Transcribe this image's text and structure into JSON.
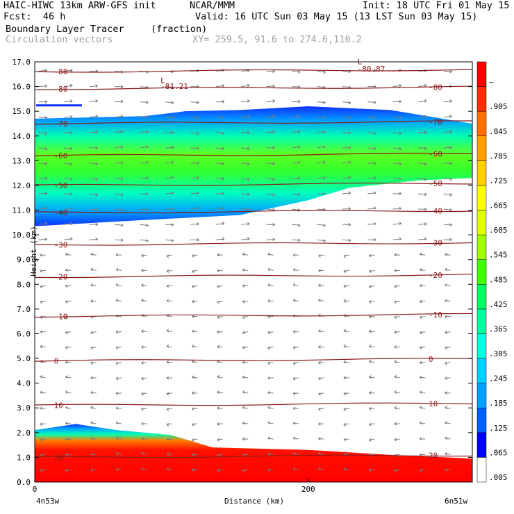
{
  "header": {
    "model": "HAIC-HIWC 13km ARW-GFS init",
    "org": "NCAR/MMM",
    "init": "Init: 18 UTC Fri 01 May 15",
    "fcst": "Fcst:  46 h",
    "valid": "Valid: 16 UTC Sun 03 May 15 (13 LST Sun 03 May 15)",
    "field": "Boundary Layer Tracer",
    "units": "(fraction)",
    "overlay": "Circulation vectors",
    "xy": "XY= 259.5, 91.6 to 274.6,110.2"
  },
  "chart_data": {
    "type": "heatmap",
    "title": "Boundary Layer Tracer",
    "xlabel": "Distance (km)",
    "ylabel": "Height (km)",
    "xlim": [
      0,
      320
    ],
    "ylim": [
      0,
      17
    ],
    "x_ticks": [
      {
        "value": 0,
        "label": "0"
      },
      {
        "value": 200,
        "label": "200"
      }
    ],
    "x_end_labels": {
      "left": "4n53w",
      "right": "6n51w"
    },
    "y_ticks": [
      "0.0",
      "1.0",
      "2.0",
      "3.0",
      "4.0",
      "5.0",
      "6.0",
      "7.0",
      "8.0",
      "9.0",
      "10.0",
      "11.0",
      "12.0",
      "13.0",
      "14.0",
      "15.0",
      "16.0",
      "17.0"
    ],
    "colorbar": {
      "labels": [
        ".005",
        ".065",
        ".125",
        ".185",
        ".245",
        ".305",
        ".365",
        ".425",
        ".485",
        ".545",
        ".605",
        ".665",
        ".725",
        ".785",
        ".845",
        ".905",
        "–"
      ],
      "colors": [
        "#ffffff",
        "#0000ff",
        "#0060ff",
        "#00a0ff",
        "#00d0ff",
        "#00ffe0",
        "#00ffa0",
        "#00ff60",
        "#40ff00",
        "#a0ff00",
        "#e0ff00",
        "#ffff00",
        "#ffd000",
        "#ffa000",
        "#ff7000",
        "#ff3000",
        "#ff0000"
      ]
    },
    "layers": [
      {
        "name": "upper plume",
        "bottom_km": [
          {
            "x": 0,
            "y": 10.35
          },
          {
            "x": 80,
            "y": 10.6
          },
          {
            "x": 150,
            "y": 10.8
          },
          {
            "x": 200,
            "y": 11.4
          },
          {
            "x": 230,
            "y": 11.9
          },
          {
            "x": 280,
            "y": 12.2
          },
          {
            "x": 320,
            "y": 12.3
          }
        ],
        "top_km": [
          {
            "x": 0,
            "y": 14.7
          },
          {
            "x": 80,
            "y": 14.8
          },
          {
            "x": 110,
            "y": 15.0
          },
          {
            "x": 150,
            "y": 15.05
          },
          {
            "x": 200,
            "y": 15.2
          },
          {
            "x": 260,
            "y": 15.05
          },
          {
            "x": 320,
            "y": 14.5
          }
        ]
      },
      {
        "name": "boundary layer",
        "top_km": [
          {
            "x": 0,
            "y": 2.1
          },
          {
            "x": 30,
            "y": 2.35
          },
          {
            "x": 60,
            "y": 2.1
          },
          {
            "x": 100,
            "y": 1.9
          },
          {
            "x": 130,
            "y": 1.4
          },
          {
            "x": 200,
            "y": 1.3
          },
          {
            "x": 260,
            "y": 1.1
          },
          {
            "x": 320,
            "y": 0.95
          }
        ]
      }
    ],
    "temperature_contours": [
      {
        "value": "-80",
        "y_km": 16.6
      },
      {
        "value": "-80",
        "y_km": 15.9
      },
      {
        "value": "-70",
        "y_km": 14.5
      },
      {
        "value": "-60",
        "y_km": 13.2
      },
      {
        "value": "-50",
        "y_km": 12.0
      },
      {
        "value": "-40",
        "y_km": 10.9
      },
      {
        "value": "-30",
        "y_km": 9.6
      },
      {
        "value": "-20",
        "y_km": 8.3
      },
      {
        "value": "-10",
        "y_km": 6.7
      },
      {
        "value": "0",
        "y_km": 4.9
      },
      {
        "value": "10",
        "y_km": 3.1
      },
      {
        "value": "20",
        "y_km": 1.0
      }
    ],
    "contour_annotations": [
      {
        "text": "L",
        "x": 92,
        "y_km": 16.15
      },
      {
        "text": "-81.21",
        "x": 92,
        "y_km": 15.9
      },
      {
        "text": "L",
        "x": 236,
        "y_km": 16.9
      },
      {
        "text": "-80.87",
        "x": 236,
        "y_km": 16.6
      }
    ]
  }
}
